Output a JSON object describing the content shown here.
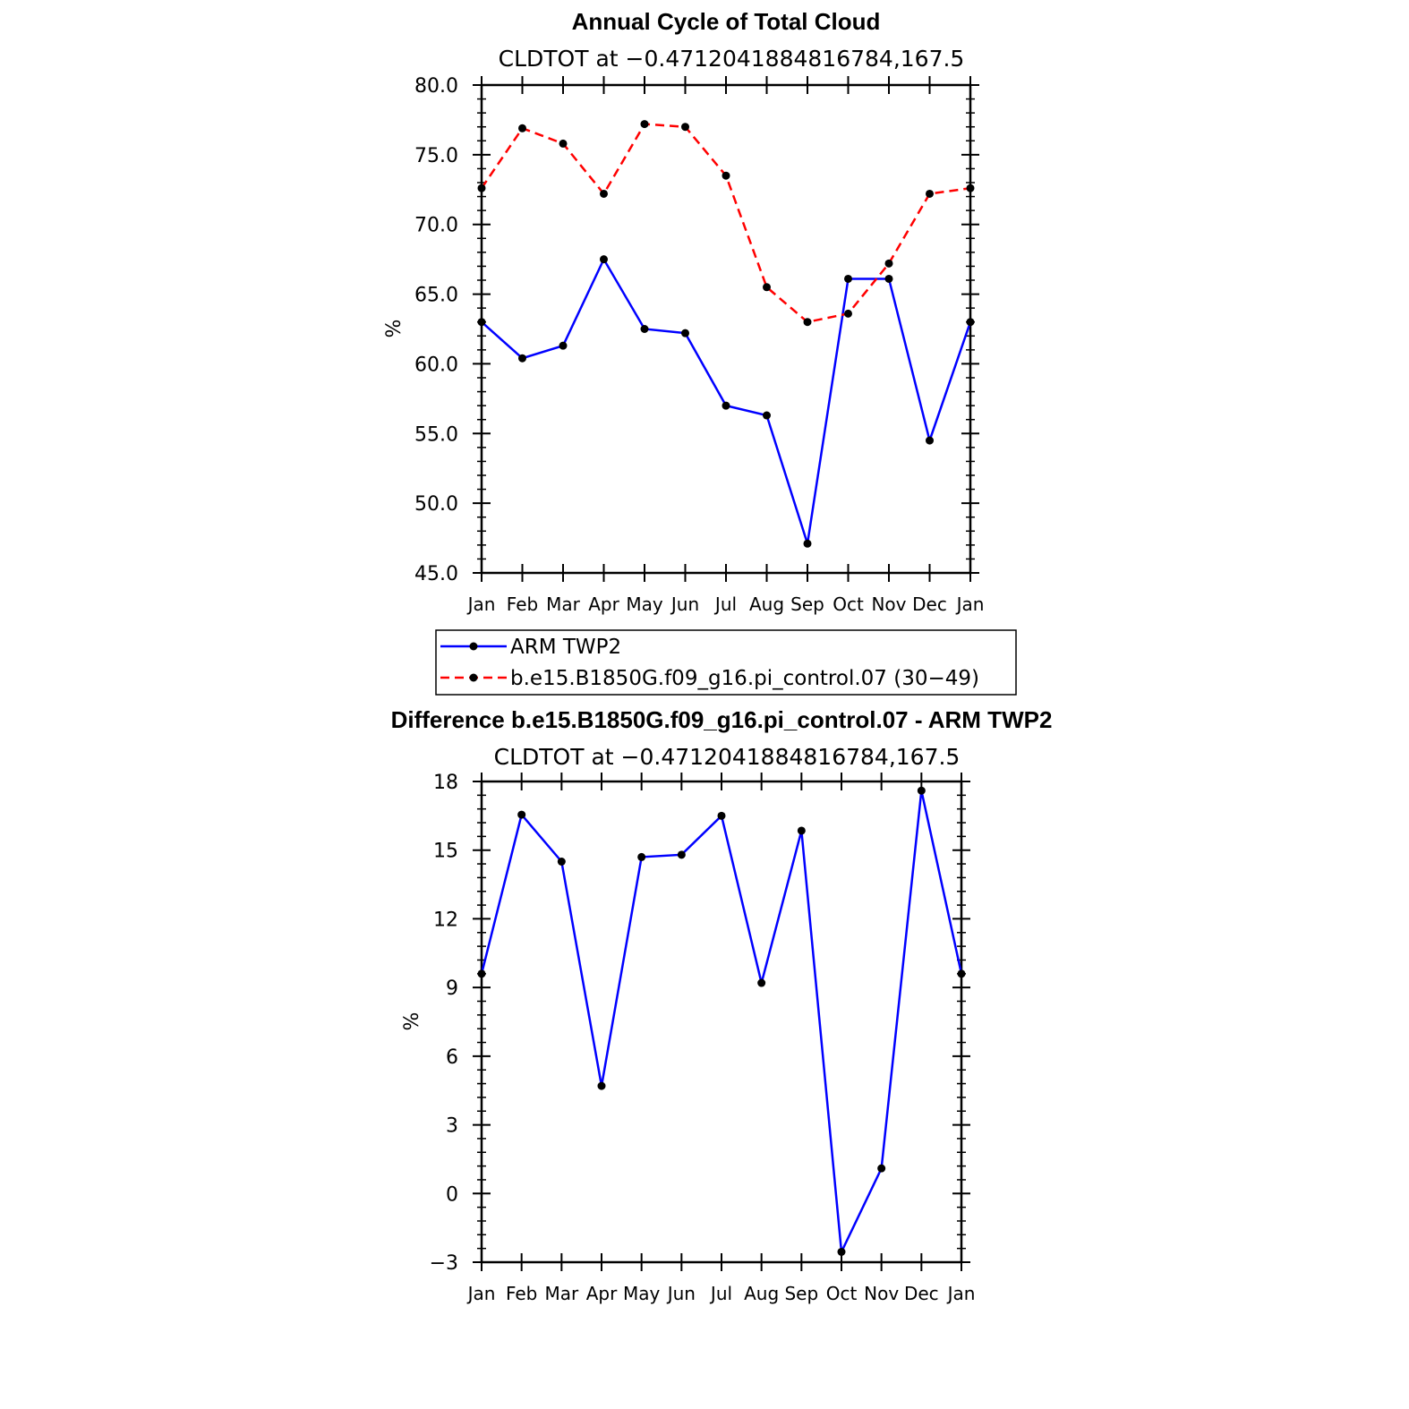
{
  "chart_data": [
    {
      "type": "line",
      "title": "Annual Cycle of Total Cloud",
      "subtitle": "CLDTOT at −0.4712041884816784,167.5",
      "ylabel": "%",
      "ylim": [
        45.0,
        80.0
      ],
      "yticks": [
        "45.0",
        "50.0",
        "55.0",
        "60.0",
        "65.0",
        "70.0",
        "75.0",
        "80.0"
      ],
      "categories": [
        "Jan",
        "Feb",
        "Mar",
        "Apr",
        "May",
        "Jun",
        "Jul",
        "Aug",
        "Sep",
        "Oct",
        "Nov",
        "Dec",
        "Jan"
      ],
      "series": [
        {
          "name": "ARM TWP2",
          "color": "#0000ff",
          "dash": "solid",
          "values": [
            63.0,
            60.4,
            61.3,
            67.5,
            62.5,
            62.2,
            57.0,
            56.3,
            47.1,
            66.1,
            66.1,
            54.5,
            63.0
          ]
        },
        {
          "name": "b.e15.B1850G.f09_g16.pi_control.07 (30−49)",
          "color": "#ff0000",
          "dash": "dashed",
          "values": [
            72.6,
            76.9,
            75.8,
            72.2,
            77.2,
            77.0,
            73.5,
            65.5,
            63.0,
            63.6,
            67.2,
            72.2,
            72.6
          ]
        }
      ],
      "legend": "below"
    },
    {
      "type": "line",
      "title": "Difference b.e15.B1850G.f09_g16.pi_control.07 - ARM TWP2",
      "subtitle": "CLDTOT at −0.4712041884816784,167.5",
      "ylabel": "%",
      "ylim": [
        -3,
        18
      ],
      "yticks": [
        "−3",
        "0",
        "3",
        "6",
        "9",
        "12",
        "15",
        "18"
      ],
      "categories": [
        "Jan",
        "Feb",
        "Mar",
        "Apr",
        "May",
        "Jun",
        "Jul",
        "Aug",
        "Sep",
        "Oct",
        "Nov",
        "Dec",
        "Jan"
      ],
      "series": [
        {
          "color": "#0000ff",
          "dash": "solid",
          "values": [
            9.6,
            16.55,
            14.5,
            4.7,
            14.7,
            14.8,
            16.5,
            9.2,
            15.85,
            -2.55,
            1.1,
            17.6,
            9.6
          ]
        }
      ]
    }
  ]
}
